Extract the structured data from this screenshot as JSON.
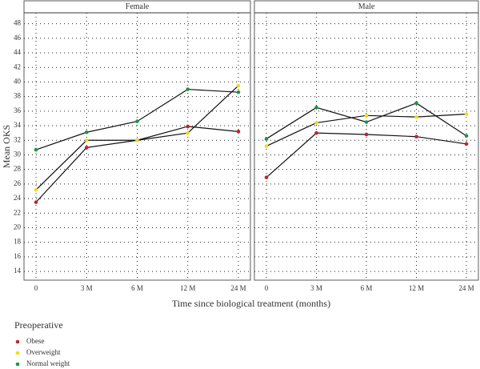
{
  "chart_data": [
    {
      "type": "line",
      "title": "Female",
      "y_label": "Mean OKS",
      "x_label": "Time since biological treatment (months)",
      "legend_title": "Preoperative",
      "categories": [
        "0",
        "3 M",
        "6 M",
        "12 M",
        "24 M"
      ],
      "series": [
        {
          "name": "Obese",
          "color": "#c8202a",
          "values": [
            23.5,
            31.0,
            32.0,
            33.9,
            33.2
          ]
        },
        {
          "name": "Overweight",
          "color": "#f0dc14",
          "values": [
            25.2,
            32.0,
            32.0,
            33.0,
            39.5
          ]
        },
        {
          "name": "Normal weight",
          "color": "#1a9641",
          "values": [
            30.7,
            33.1,
            34.6,
            39.0,
            38.6
          ]
        }
      ],
      "ylim": [
        12.8,
        49.5
      ],
      "yticks": [
        14,
        16,
        18,
        20,
        22,
        24,
        26,
        28,
        30,
        32,
        34,
        36,
        38,
        40,
        42,
        44,
        46,
        48
      ],
      "grid": true
    },
    {
      "type": "line",
      "title": "Male",
      "categories": [
        "0",
        "3 M",
        "6 M",
        "12 M",
        "24 M"
      ],
      "series": [
        {
          "name": "Obese",
          "color": "#c8202a",
          "values": [
            26.9,
            33.0,
            32.8,
            32.5,
            31.5
          ]
        },
        {
          "name": "Overweight",
          "color": "#f0dc14",
          "values": [
            31.2,
            34.4,
            35.4,
            35.2,
            35.6
          ]
        },
        {
          "name": "Normal weight",
          "color": "#1a9641",
          "values": [
            32.2,
            36.5,
            34.5,
            37.1,
            32.6
          ]
        }
      ],
      "ylim": [
        12.8,
        49.5
      ],
      "yticks": [
        14,
        16,
        18,
        20,
        22,
        24,
        26,
        28,
        30,
        32,
        34,
        36,
        38,
        40,
        42,
        44,
        46,
        48
      ],
      "grid": true
    }
  ]
}
